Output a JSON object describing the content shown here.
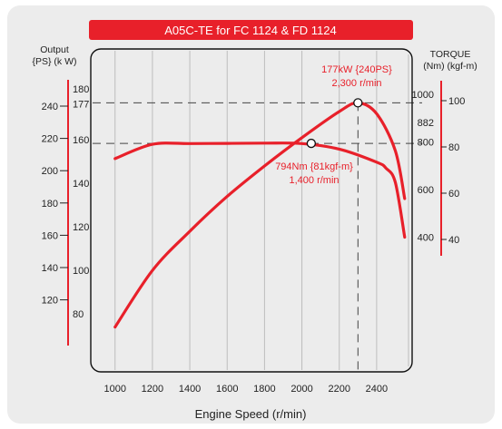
{
  "chart_data": {
    "type": "line",
    "title": "A05C-TE for FC 1124 & FD 1124",
    "xlabel": "Engine Speed (r/min)",
    "x_ticks": [
      1000,
      1200,
      1400,
      1600,
      1800,
      2000,
      2200,
      2400
    ],
    "xlim": [
      870,
      2590
    ],
    "left_axis": {
      "title_line1": "Output",
      "title_line2": "{PS} (k W)",
      "ps_ticks": [
        "240",
        "220",
        "200",
        "180",
        "160",
        "140",
        "120"
      ],
      "kw_ticks": [
        "180",
        "177",
        "160",
        "140",
        "120",
        "100",
        "80"
      ]
    },
    "right_axis": {
      "title_line1": "TORQUE",
      "title_line2": "(Nm) (kgf-m)",
      "nm_ticks": [
        "1000",
        "882",
        "800",
        "600",
        "400"
      ],
      "kgfm_ticks": [
        "100",
        "80",
        "60",
        "40"
      ]
    },
    "series": [
      {
        "name": "Output",
        "unit": "kW",
        "x": [
          1000,
          1200,
          1400,
          1600,
          1800,
          2000,
          2200,
          2300,
          2400,
          2500,
          2550
        ],
        "y": [
          74,
          100,
          118,
          134,
          148,
          161,
          173,
          177,
          172,
          155,
          133
        ]
      },
      {
        "name": "Torque",
        "unit": "Nm",
        "x": [
          1000,
          1200,
          1400,
          1600,
          1800,
          2000,
          2200,
          2400,
          2450,
          2500,
          2550
        ],
        "y": [
          730,
          790,
          793,
          794,
          795,
          793,
          770,
          715,
          690,
          630,
          400
        ]
      }
    ],
    "annotations": [
      {
        "line1": "177kW {240PS}",
        "line2": "2,300 r/min",
        "x": 2300,
        "y": 177,
        "series": "Output"
      },
      {
        "line1": "794Nm {81kgf-m}",
        "line2": "1,400 r/min",
        "x": 2050,
        "y": 794,
        "series": "Torque"
      }
    ],
    "reference_lines": {
      "output_kw": 177,
      "output_rpm": 2300,
      "torque_nm": 794
    },
    "colors": {
      "curve": "#e8202a",
      "title_bar": "#e8202a",
      "axis_scale": "#e8202a",
      "grid": "#bdbdbd",
      "frame": "#111111",
      "background": "#ececec"
    }
  }
}
